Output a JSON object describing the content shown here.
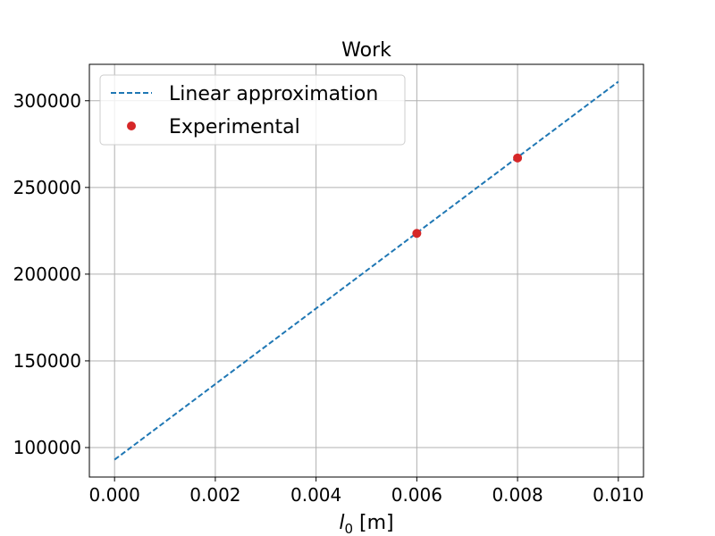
{
  "chart_data": {
    "type": "line",
    "title": "Work",
    "xlabel_main": "l",
    "xlabel_sub": "0",
    "xlabel_unit": " [m]",
    "ylabel": "",
    "xlim": [
      -0.0005,
      0.0105
    ],
    "ylim": [
      83000,
      321000
    ],
    "xticks": [
      0.0,
      0.002,
      0.004,
      0.006,
      0.008,
      0.01
    ],
    "xtick_labels": [
      "0.000",
      "0.002",
      "0.004",
      "0.006",
      "0.008",
      "0.010"
    ],
    "yticks": [
      100000,
      150000,
      200000,
      250000,
      300000
    ],
    "ytick_labels": [
      "100000",
      "150000",
      "200000",
      "250000",
      "300000"
    ],
    "grid": true,
    "legend_position": "top-left",
    "series": [
      {
        "name": "Linear approximation",
        "kind": "line",
        "style": "dashed",
        "color": "#1f77b4",
        "x": [
          0.0,
          0.01
        ],
        "y": [
          93000,
          311000
        ]
      },
      {
        "name": "Experimental",
        "kind": "scatter",
        "color": "#d62728",
        "x": [
          0.006,
          0.008
        ],
        "y": [
          223500,
          267000
        ]
      }
    ]
  }
}
